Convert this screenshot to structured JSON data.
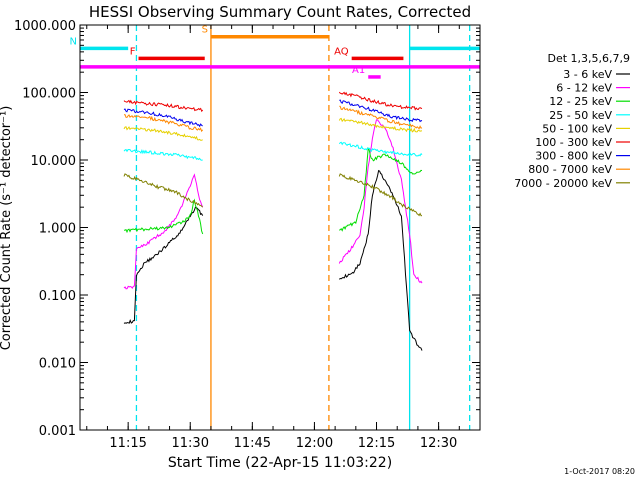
{
  "chart_data": {
    "type": "line",
    "title": "HESSI Observing Summary Count Rates, Corrected",
    "xlabel": "Start Time (22-Apr-15 11:03:22)",
    "ylabel": "Corrected Count Rate (s⁻¹ detector⁻¹)",
    "y_scale": "log",
    "ylim": [
      0.001,
      1000
    ],
    "xlim": [
      "11:03:22",
      "12:40:00"
    ],
    "x_ticks": [
      "11:15",
      "11:30",
      "11:45",
      "12:00",
      "12:15",
      "12:30"
    ],
    "y_ticks": [
      "1000.000",
      "100.000",
      "10.000",
      "1.000",
      "0.100",
      "0.010",
      "0.001"
    ],
    "grid": false,
    "legend_title": "Det 1,3,5,6,7,9",
    "legend_position": "right",
    "series": [
      {
        "name": "3 - 6 keV",
        "color": "#000000",
        "segments": [
          {
            "x": [
              "11:14:00",
              "11:16:30",
              "11:17:00",
              "11:19:00",
              "11:22:00",
              "11:25:00",
              "11:28:00",
              "11:30:00",
              "11:31:30",
              "11:33:00"
            ],
            "y": [
              0.04,
              0.04,
              0.2,
              0.3,
              0.4,
              0.6,
              0.9,
              1.5,
              2.0,
              1.5
            ]
          },
          {
            "x": [
              "12:06:00",
              "12:09:00",
              "12:11:00",
              "12:13:00",
              "12:14:00",
              "12:15:30",
              "12:17:00",
              "12:19:00",
              "12:21:00",
              "12:23:00",
              "12:24:30",
              "12:26:00"
            ],
            "y": [
              0.18,
              0.2,
              0.3,
              0.8,
              3.0,
              7.0,
              5.0,
              3.0,
              1.5,
              0.03,
              0.02,
              0.015
            ]
          }
        ]
      },
      {
        "name": "6 - 12 keV",
        "color": "#ff00ff",
        "segments": [
          {
            "x": [
              "11:14:00",
              "11:16:30",
              "11:17:00",
              "11:20:00",
              "11:24:00",
              "11:27:00",
              "11:29:00",
              "11:31:00",
              "11:32:00",
              "11:33:00"
            ],
            "y": [
              0.13,
              0.13,
              0.5,
              0.6,
              0.9,
              1.5,
              3.0,
              6.0,
              3.0,
              2.0
            ]
          },
          {
            "x": [
              "12:06:00",
              "12:09:00",
              "12:11:00",
              "12:12:00",
              "12:13:00",
              "12:14:00",
              "12:15:00",
              "12:17:00",
              "12:19:00",
              "12:21:00",
              "12:23:00",
              "12:24:00",
              "12:26:00"
            ],
            "y": [
              0.3,
              0.5,
              0.8,
              2.0,
              8.0,
              20,
              40,
              30,
              15,
              5,
              0.8,
              0.2,
              0.15
            ]
          }
        ]
      },
      {
        "name": "12 - 25 keV",
        "color": "#00dd00",
        "segments": [
          {
            "x": [
              "11:14:00",
              "11:20:00",
              "11:25:00",
              "11:28:00",
              "11:30:00",
              "11:31:00",
              "11:32:00",
              "11:33:00"
            ],
            "y": [
              0.9,
              0.95,
              1.0,
              1.2,
              1.5,
              2.5,
              1.5,
              0.8
            ]
          },
          {
            "x": [
              "12:06:00",
              "12:10:00",
              "12:12:00",
              "12:13:00",
              "12:14:00",
              "12:17:00",
              "12:21:00",
              "12:24:00",
              "12:26:00"
            ],
            "y": [
              0.9,
              1.2,
              3.0,
              15,
              10,
              12,
              9,
              6,
              7
            ]
          }
        ]
      },
      {
        "name": "25 - 50 keV",
        "color": "#00ffff",
        "segments": [
          {
            "x": [
              "11:14:00",
              "11:20:00",
              "11:26:00",
              "11:30:00",
              "11:33:00"
            ],
            "y": [
              14,
              13,
              12,
              11,
              10
            ]
          },
          {
            "x": [
              "12:06:00",
              "12:10:00",
              "12:14:00",
              "12:18:00",
              "12:22:00",
              "12:26:00"
            ],
            "y": [
              18,
              16,
              14,
              13,
              12,
              12
            ]
          }
        ]
      },
      {
        "name": "50 - 100 keV",
        "color": "#e6d000",
        "segments": [
          {
            "x": [
              "11:14:00",
              "11:20:00",
              "11:26:00",
              "11:30:00",
              "11:33:00"
            ],
            "y": [
              30,
              28,
              25,
              22,
              20
            ]
          },
          {
            "x": [
              "12:06:00",
              "12:10:00",
              "12:14:00",
              "12:18:00",
              "12:22:00",
              "12:26:00"
            ],
            "y": [
              40,
              37,
              33,
              30,
              28,
              27
            ]
          }
        ]
      },
      {
        "name": "100 - 300 keV",
        "color": "#ee0000",
        "segments": [
          {
            "x": [
              "11:14:00",
              "11:18:00",
              "11:24:00",
              "11:28:00",
              "11:33:00"
            ],
            "y": [
              75,
              70,
              65,
              60,
              55
            ]
          },
          {
            "x": [
              "12:06:00",
              "12:10:00",
              "12:14:00",
              "12:18:00",
              "12:22:00",
              "12:26:00"
            ],
            "y": [
              100,
              90,
              75,
              65,
              60,
              58
            ]
          }
        ]
      },
      {
        "name": "300 - 800 keV",
        "color": "#0000ee",
        "segments": [
          {
            "x": [
              "11:14:00",
              "11:18:00",
              "11:24:00",
              "11:28:00",
              "11:33:00"
            ],
            "y": [
              55,
              52,
              45,
              38,
              32
            ]
          },
          {
            "x": [
              "12:06:00",
              "12:10:00",
              "12:14:00",
              "12:18:00",
              "12:22:00",
              "12:26:00"
            ],
            "y": [
              75,
              65,
              55,
              45,
              40,
              38
            ]
          }
        ]
      },
      {
        "name": "800 - 7000 keV",
        "color": "#ff8800",
        "segments": [
          {
            "x": [
              "11:14:00",
              "11:20:00",
              "11:26:00",
              "11:30:00",
              "11:33:00"
            ],
            "y": [
              45,
              42,
              35,
              30,
              28
            ]
          },
          {
            "x": [
              "12:06:00",
              "12:10:00",
              "12:14:00",
              "12:18:00",
              "12:22:00",
              "12:26:00"
            ],
            "y": [
              60,
              52,
              45,
              38,
              33,
              30
            ]
          }
        ]
      },
      {
        "name": "7000 - 20000 keV",
        "color": "#808000",
        "segments": [
          {
            "x": [
              "11:14:00",
              "11:18:00",
              "11:22:00",
              "11:26:00",
              "11:30:00",
              "11:33:00"
            ],
            "y": [
              6,
              5,
              4,
              3.5,
              2.5,
              2
            ]
          },
          {
            "x": [
              "12:06:00",
              "12:10:00",
              "12:14:00",
              "12:18:00",
              "12:22:00",
              "12:26:00"
            ],
            "y": [
              6,
              5,
              4,
              3,
              2,
              1.5
            ]
          }
        ]
      }
    ],
    "vertical_lines": [
      {
        "x": "11:17:00",
        "color": "#00e5ee",
        "style": "dashed"
      },
      {
        "x": "11:35:00",
        "color": "#ff8800",
        "style": "solid"
      },
      {
        "x": "12:03:30",
        "color": "#ff8800",
        "style": "dashed"
      },
      {
        "x": "12:23:00",
        "color": "#00e5ee",
        "style": "solid"
      },
      {
        "x": "12:37:30",
        "color": "#00e5ee",
        "style": "dashed"
      }
    ],
    "bars": [
      {
        "label": "N",
        "color": "#00e5ee",
        "x": [
          [
            "11:03:22",
            "11:15:00"
          ],
          [
            "12:23:00",
            "12:40:00"
          ]
        ],
        "level": 450
      },
      {
        "label": "S",
        "color": "#ff8800",
        "x": [
          [
            "11:35:00",
            "12:03:30"
          ]
        ],
        "level": 670
      },
      {
        "label": "F",
        "color": "#ee0000",
        "x": [
          [
            "11:17:30",
            "11:33:30"
          ]
        ],
        "level": 320
      },
      {
        "label": "AQ",
        "color": "#ee0000",
        "x": [
          [
            "12:09:00",
            "12:21:30"
          ]
        ],
        "level": 320
      },
      {
        "label": "",
        "color": "#ff00ff",
        "x": [
          [
            "11:03:22",
            "12:40:00"
          ]
        ],
        "level": 240
      },
      {
        "label": "A1",
        "color": "#ff00ff",
        "x": [
          [
            "12:13:00",
            "12:16:00"
          ]
        ],
        "level": 170
      }
    ],
    "footer_note": "1-Oct-2017 08:20"
  }
}
